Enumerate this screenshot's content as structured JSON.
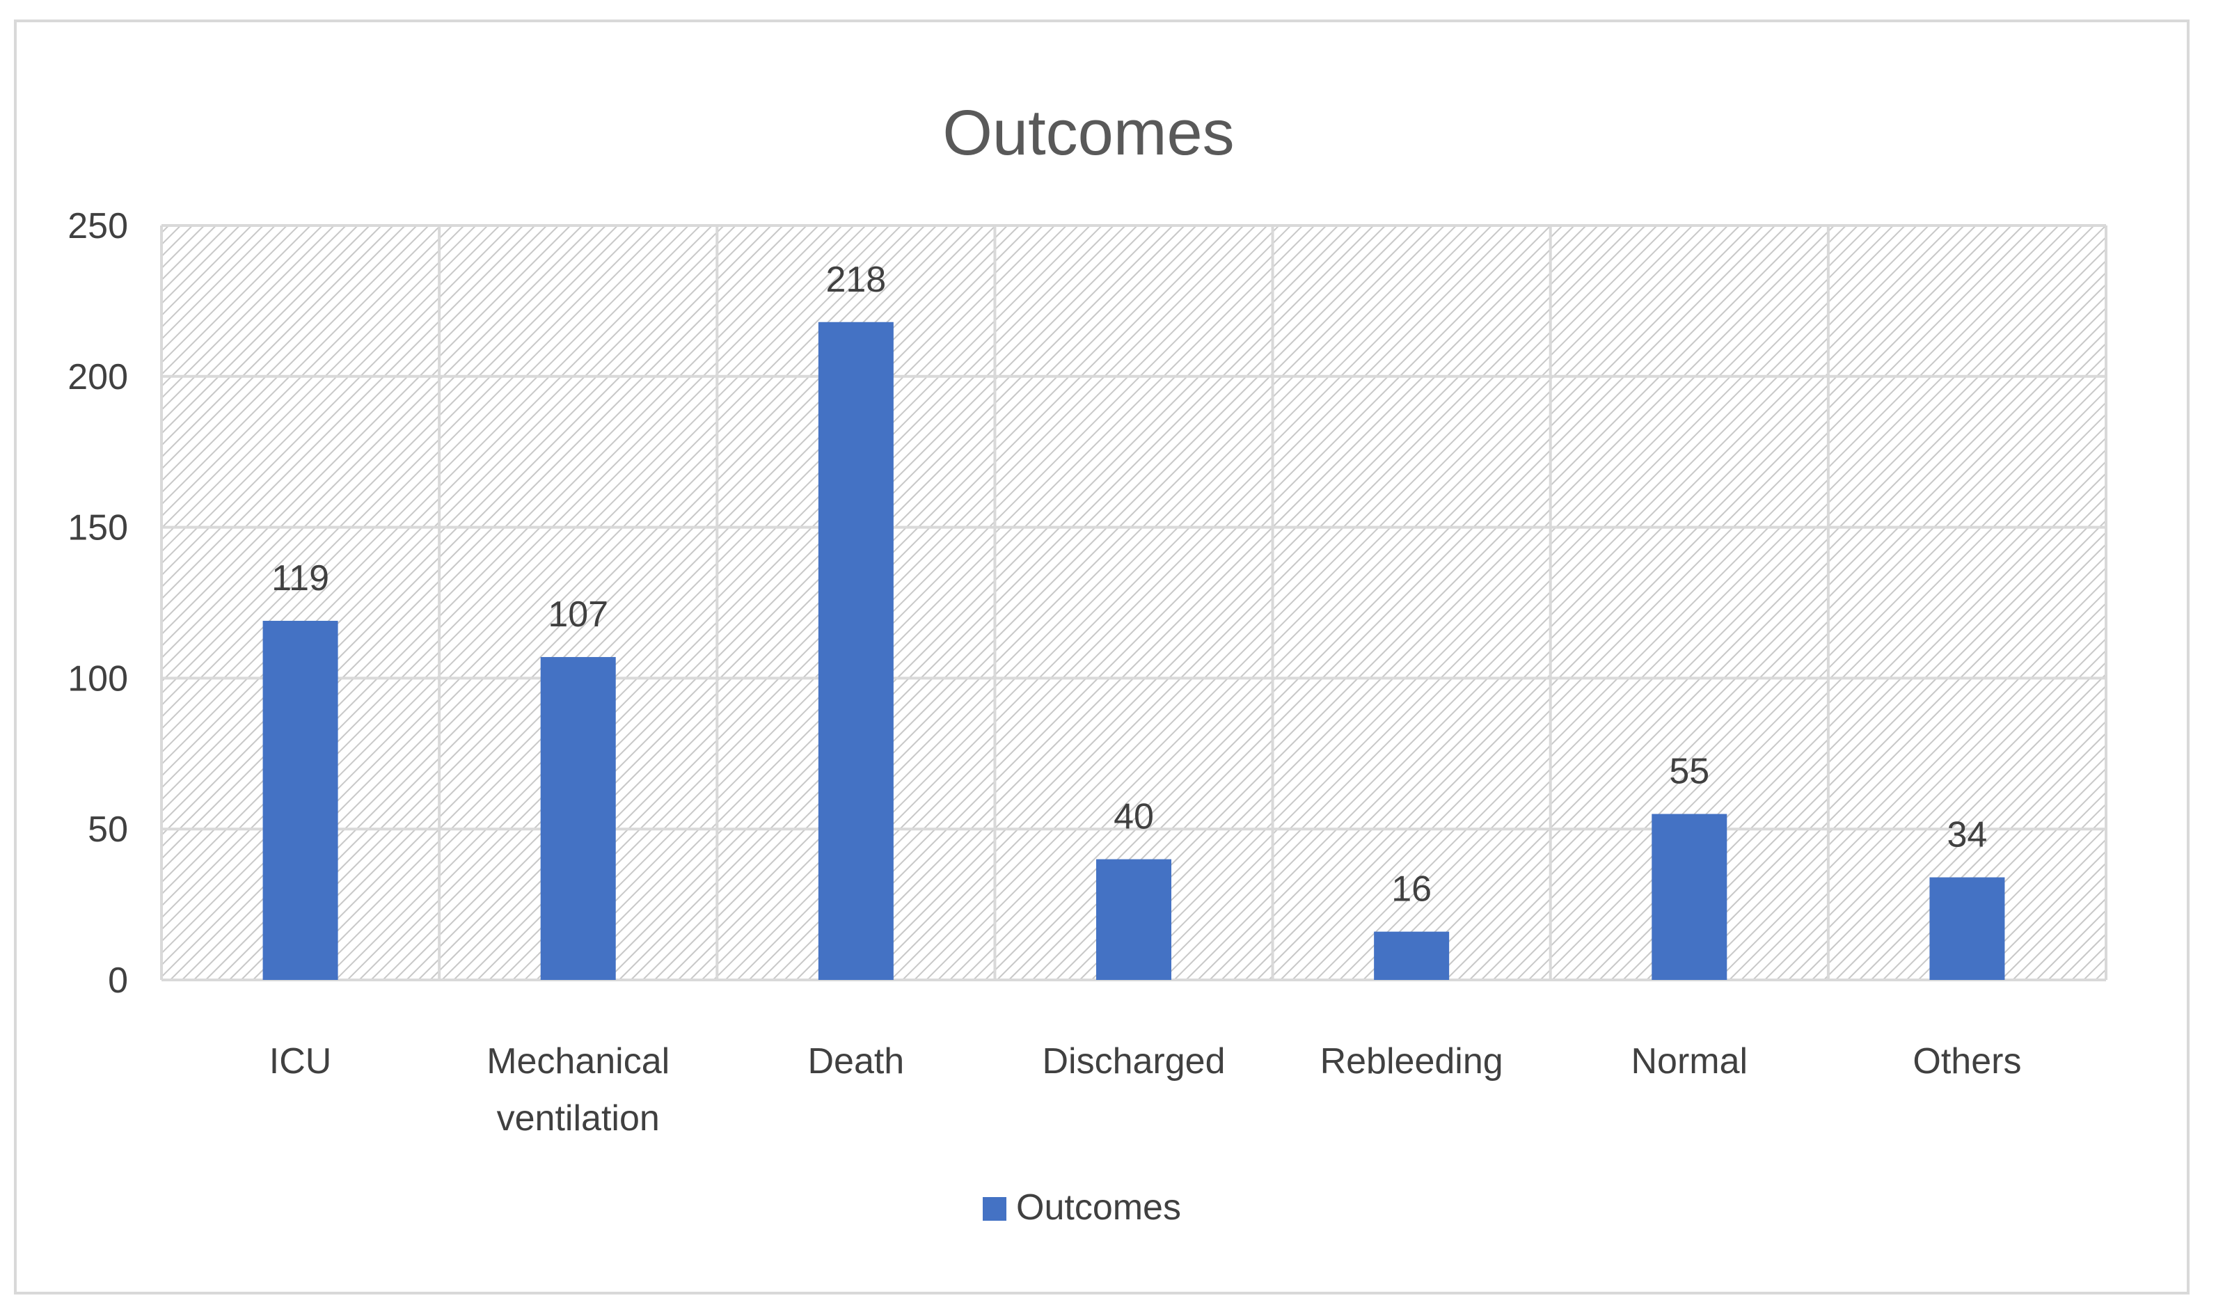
{
  "chart_data": {
    "type": "bar",
    "title": "Outcomes",
    "categories": [
      "ICU",
      "Mechanical ventilation",
      "Death",
      "Discharged",
      "Rebleeding",
      "Normal",
      "Others"
    ],
    "category_lines": [
      [
        "ICU"
      ],
      [
        "Mechanical",
        "ventilation"
      ],
      [
        "Death"
      ],
      [
        "Discharged"
      ],
      [
        "Rebleeding"
      ],
      [
        "Normal"
      ],
      [
        "Others"
      ]
    ],
    "series": [
      {
        "name": "Outcomes",
        "values": [
          119,
          107,
          218,
          40,
          16,
          55,
          34
        ]
      }
    ],
    "ylim": [
      0,
      250
    ],
    "yticks": [
      0,
      50,
      100,
      150,
      200,
      250
    ],
    "xlabel": "",
    "ylabel": "",
    "legend": "bottom",
    "grid": true,
    "data_labels": true,
    "bar_color": "#4472c4",
    "title_color": "#595959",
    "label_color": "#404040",
    "grid_color": "#d9d9d9"
  }
}
